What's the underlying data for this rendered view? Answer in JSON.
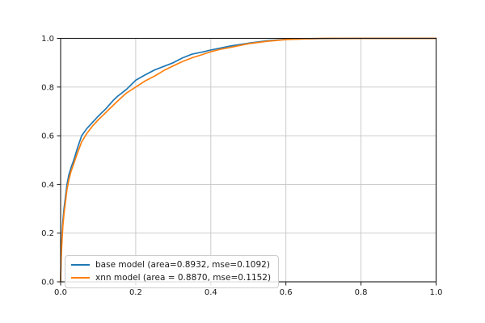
{
  "figure": {
    "background": "#ffffff",
    "grid_color": "#c6c6c6",
    "spine_color": "#1a1a1a",
    "tick_label_color": "#1a1a1a"
  },
  "chart_data": {
    "type": "line",
    "title": "",
    "xlabel": "",
    "ylabel": "",
    "xlim": [
      0.0,
      1.0
    ],
    "ylim": [
      0.0,
      1.0
    ],
    "grid": true,
    "legend_position": "lower left",
    "x_ticks": [
      0.0,
      0.2,
      0.4,
      0.6,
      0.8,
      1.0
    ],
    "y_ticks": [
      0.0,
      0.2,
      0.4,
      0.6,
      0.8,
      1.0
    ],
    "x_tick_labels": [
      "0.0",
      "0.2",
      "0.4",
      "0.6",
      "0.8",
      "1.0"
    ],
    "y_tick_labels": [
      "0.0",
      "0.2",
      "0.4",
      "0.6",
      "0.8",
      "1.0"
    ],
    "series": [
      {
        "name": "base model (area=0.8932, mse=0.1092)",
        "color": "#1f77b4",
        "area": 0.8932,
        "mse": 0.1092,
        "x": [
          0,
          0.001,
          0.002,
          0.004,
          0.006,
          0.009,
          0.013,
          0.017,
          0.022,
          0.028,
          0.035,
          0.045,
          0.056,
          0.07,
          0.085,
          0.1,
          0.12,
          0.14,
          0.15,
          0.175,
          0.2,
          0.225,
          0.25,
          0.275,
          0.3,
          0.325,
          0.35,
          0.375,
          0.4,
          0.425,
          0.45,
          0.5,
          0.55,
          0.6,
          0.65,
          0.7,
          0.8,
          0.9,
          1.0
        ],
        "y": [
          0,
          0.08,
          0.14,
          0.2,
          0.25,
          0.3,
          0.35,
          0.4,
          0.44,
          0.47,
          0.5,
          0.55,
          0.6,
          0.63,
          0.655,
          0.68,
          0.71,
          0.745,
          0.76,
          0.79,
          0.828,
          0.85,
          0.87,
          0.885,
          0.9,
          0.92,
          0.935,
          0.943,
          0.952,
          0.96,
          0.968,
          0.98,
          0.99,
          0.996,
          0.998,
          0.999,
          1.0,
          1.0,
          1.0
        ]
      },
      {
        "name": "xnn model (area = 0.8870, mse=0.1152)",
        "color": "#ff7f0e",
        "area": 0.887,
        "mse": 0.1152,
        "x": [
          0,
          0.001,
          0.002,
          0.004,
          0.006,
          0.009,
          0.013,
          0.017,
          0.022,
          0.028,
          0.035,
          0.045,
          0.056,
          0.07,
          0.085,
          0.1,
          0.12,
          0.14,
          0.15,
          0.175,
          0.2,
          0.225,
          0.25,
          0.275,
          0.3,
          0.325,
          0.35,
          0.375,
          0.4,
          0.425,
          0.45,
          0.5,
          0.55,
          0.6,
          0.65,
          0.7,
          0.8,
          0.9,
          1.0
        ],
        "y": [
          0,
          0.07,
          0.12,
          0.18,
          0.23,
          0.28,
          0.33,
          0.38,
          0.42,
          0.455,
          0.485,
          0.53,
          0.575,
          0.61,
          0.64,
          0.665,
          0.695,
          0.725,
          0.74,
          0.775,
          0.8,
          0.825,
          0.845,
          0.868,
          0.887,
          0.905,
          0.92,
          0.932,
          0.945,
          0.955,
          0.962,
          0.978,
          0.988,
          0.995,
          0.998,
          1.0,
          1.0,
          1.0,
          1.0
        ]
      }
    ]
  },
  "legend": {
    "entries": [
      {
        "label": "base model (area=0.8932, mse=0.1092)"
      },
      {
        "label": "xnn model (area = 0.8870, mse=0.1152)"
      }
    ]
  }
}
